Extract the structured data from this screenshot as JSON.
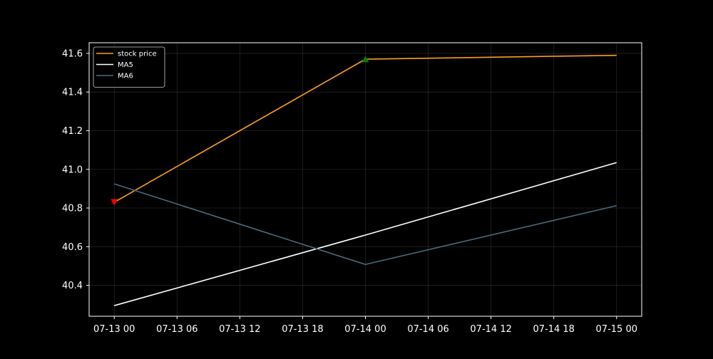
{
  "chart_data": {
    "type": "line",
    "title": "",
    "xlabel": "",
    "ylabel": "",
    "x": [
      "07-13 00",
      "07-14 00",
      "07-15 00"
    ],
    "x_ticks": [
      "07-13 00",
      "07-13 06",
      "07-13 12",
      "07-13 18",
      "07-14 00",
      "07-14 06",
      "07-14 12",
      "07-14 18",
      "07-15 00"
    ],
    "y_ticks": [
      40.4,
      40.6,
      40.8,
      41.0,
      41.2,
      41.4,
      41.6
    ],
    "ylim": [
      40.24,
      41.655
    ],
    "xlim_hours": [
      -2.4,
      50.4
    ],
    "grid": true,
    "legend_position": "top-left",
    "series": [
      {
        "name": "stock price",
        "color": "#ff9e1f",
        "values": [
          40.83,
          41.57,
          41.59
        ]
      },
      {
        "name": "MA5",
        "color": "#ffffff",
        "values": [
          40.295,
          40.66,
          41.035
        ]
      },
      {
        "name": "MA6",
        "color": "#4a6a7e",
        "values": [
          40.925,
          40.508,
          40.812
        ]
      }
    ],
    "markers": [
      {
        "type": "sell",
        "shape": "triangle-down",
        "color": "#ff0000",
        "x": "07-13 00",
        "y": 40.83
      },
      {
        "type": "buy",
        "shape": "triangle-up",
        "color": "#008000",
        "x": "07-14 00",
        "y": 41.57
      }
    ]
  }
}
